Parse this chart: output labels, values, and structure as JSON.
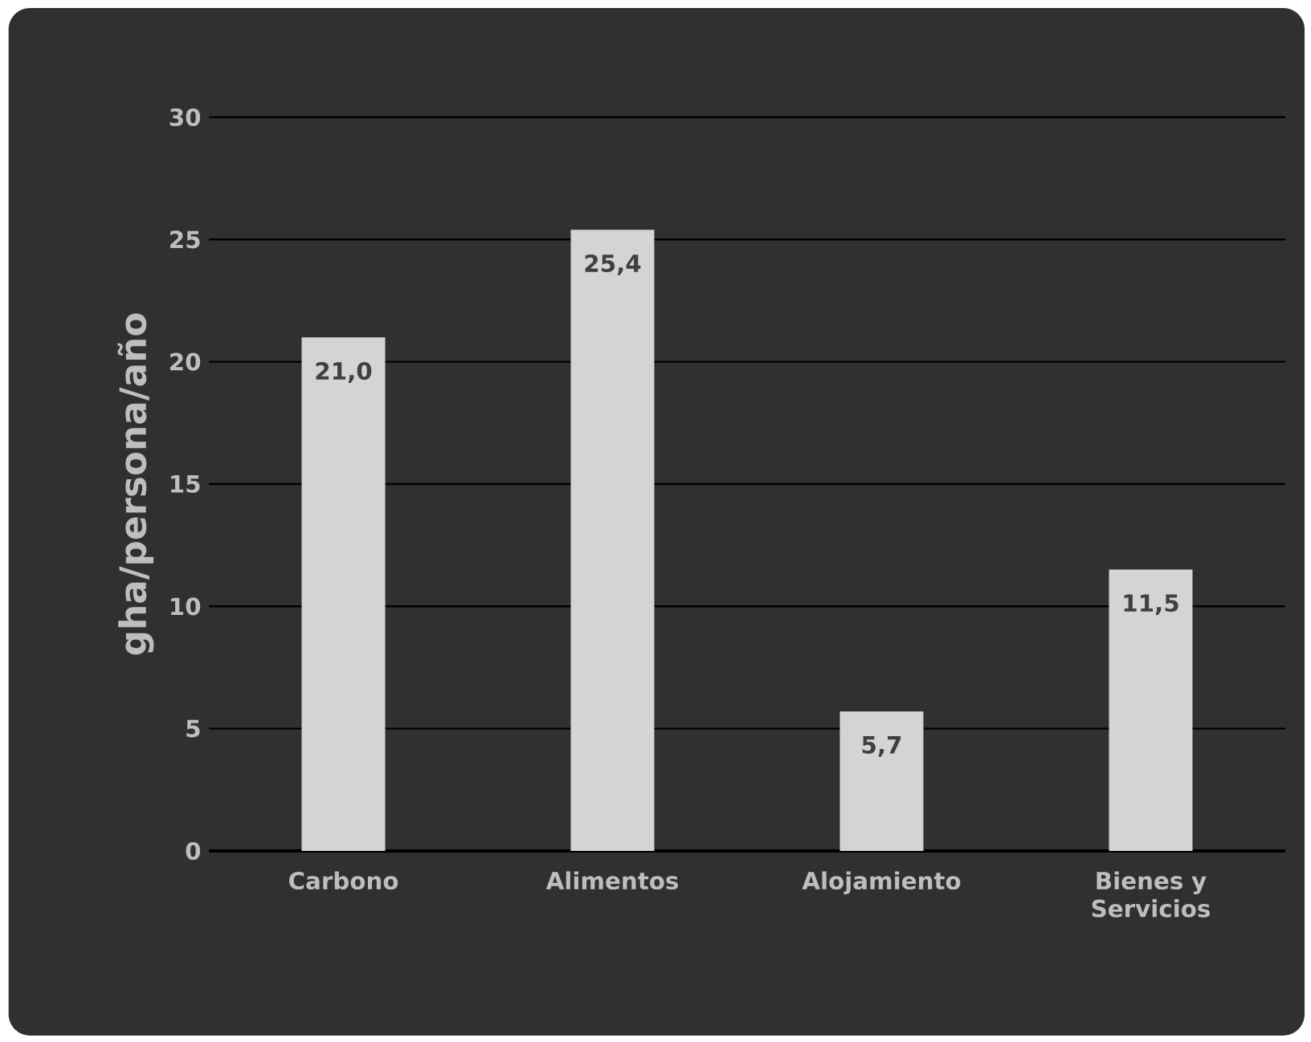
{
  "chart_data": {
    "type": "bar",
    "ylabel": "gha/persona/año",
    "categories": [
      "Carbono",
      "Alimentos",
      "Alojamiento",
      "Bienes y Servicios"
    ],
    "values": [
      21.0,
      25.4,
      5.7,
      11.5
    ],
    "value_labels": [
      "21,0",
      "25,4",
      "5,7",
      "11,5"
    ],
    "color": "#d4d4d4",
    "ylim": [
      0,
      30
    ],
    "yticks": [
      0,
      5,
      10,
      15,
      20,
      25,
      30
    ],
    "grid": "y"
  }
}
